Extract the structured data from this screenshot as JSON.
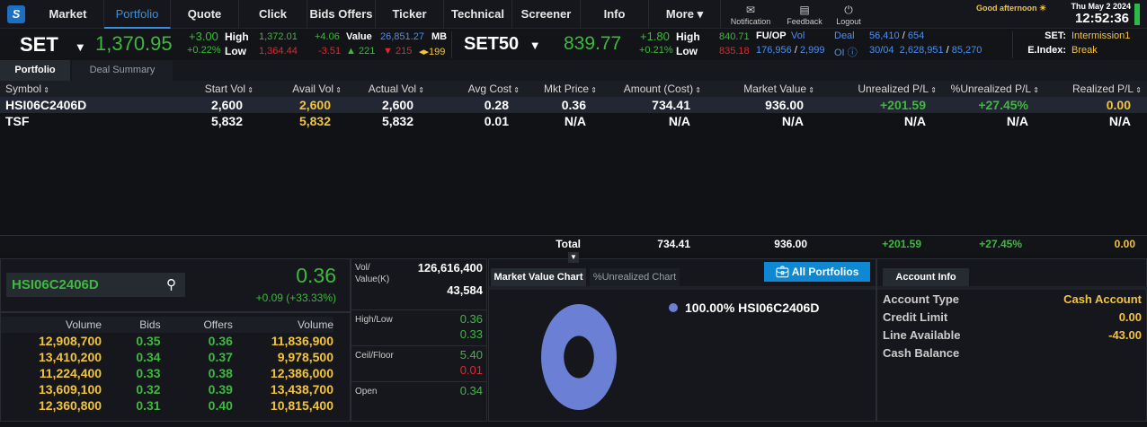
{
  "nav": {
    "logo": "S",
    "items": [
      "Market",
      "Portfolio",
      "Quote",
      "Click",
      "Bids Offers",
      "Ticker",
      "Technical",
      "Screener",
      "Info",
      "More"
    ],
    "active": "Portfolio",
    "tools": [
      {
        "icon": "mail-icon",
        "label": "Notification"
      },
      {
        "icon": "feedback-icon",
        "label": "Feedback"
      },
      {
        "icon": "power-icon",
        "label": "Logout"
      }
    ],
    "greeting": "Good afternoon",
    "date": "Thu May 2 2024",
    "time": "12:52:36"
  },
  "set": {
    "name": "SET",
    "last": "1,370.95",
    "chg": "+3.00",
    "pct": "+0.22%",
    "high_label": "High",
    "low_label": "Low",
    "high": "1,372.01",
    "low": "1,364.44",
    "up_chg": "+4.06",
    "down_chg": "-3.51",
    "value_label": "Value",
    "value": "26,851.27",
    "unit": "MB",
    "adv": "221",
    "dec": "215",
    "unch": "199"
  },
  "set50": {
    "name": "SET50",
    "last": "839.77",
    "chg": "+1.80",
    "pct": "+0.21%",
    "high": "840.71",
    "low": "835.18"
  },
  "fu": {
    "label": "FU/OP",
    "vol_label": "Vol",
    "deal_label": "Deal",
    "oi_label": "OI",
    "vol": "176,956",
    "vol2": "2,999",
    "deal": "56,410",
    "deal2": "654",
    "oi_date": "30/04",
    "oi": "2,628,951",
    "oi2": "85,270"
  },
  "status": {
    "set_label": "SET:",
    "set": "Intermission1",
    "eidx_label": "E.Index:",
    "eidx": "Break"
  },
  "tabs": [
    "Portfolio",
    "Deal Summary"
  ],
  "grid": {
    "headers": [
      "Symbol",
      "Start Vol",
      "Avail Vol",
      "Actual Vol",
      "Avg Cost",
      "Mkt Price",
      "Amount (Cost)",
      "Market Value",
      "Unrealized P/L",
      "%Unrealized P/L",
      "Realized P/L"
    ],
    "rows": [
      [
        "HSI06C2406D",
        "2,600",
        "2,600",
        "2,600",
        "0.28",
        "0.36",
        "734.41",
        "936.00",
        "+201.59",
        "+27.45%",
        "0.00"
      ],
      [
        "TSF",
        "5,832",
        "5,832",
        "5,832",
        "0.01",
        "N/A",
        "N/A",
        "N/A",
        "N/A",
        "N/A",
        "N/A"
      ]
    ],
    "total": {
      "label": "Total",
      "amount": "734.41",
      "market": "936.00",
      "upl": "+201.59",
      "pct": "+27.45%",
      "rpl": "0.00"
    }
  },
  "quote": {
    "symbol": "HSI06C2406D",
    "last": "0.36",
    "chg": "+0.09 (+33.33%)",
    "vol_label": "Vol/",
    "value_label": "Value(K)",
    "vol": "126,616,400",
    "value": "43,584",
    "hl_label": "High/Low",
    "high": "0.36",
    "low": "0.33",
    "cf_label": "Ceil/Floor",
    "ceil": "5.40",
    "floor": "0.01",
    "open_label": "Open",
    "open": "0.34"
  },
  "bidoffer": {
    "headers": [
      "Volume",
      "Bids",
      "Offers",
      "Volume"
    ],
    "rows": [
      [
        "12,908,700",
        "0.35",
        "0.36",
        "11,836,900"
      ],
      [
        "13,410,200",
        "0.34",
        "0.37",
        "9,978,500"
      ],
      [
        "11,224,400",
        "0.33",
        "0.38",
        "12,386,000"
      ],
      [
        "13,609,100",
        "0.32",
        "0.39",
        "13,438,700"
      ],
      [
        "12,360,800",
        "0.31",
        "0.40",
        "10,815,400"
      ]
    ]
  },
  "chart_tabs": [
    "Market Value Chart",
    "%Unrealized Chart"
  ],
  "all_portfolios": "All Portfolios",
  "chart_data": {
    "type": "pie",
    "series": [
      {
        "name": "HSI06C2406D",
        "value": 100.0,
        "label": "100.00%",
        "color": "#6b7fd4"
      }
    ]
  },
  "account": {
    "tab": "Account Info",
    "rows": [
      [
        "Account Type",
        "Cash Account"
      ],
      [
        "Credit Limit",
        "0.00"
      ],
      [
        "Line Available",
        "-43.00"
      ],
      [
        "Cash Balance",
        ""
      ]
    ]
  }
}
